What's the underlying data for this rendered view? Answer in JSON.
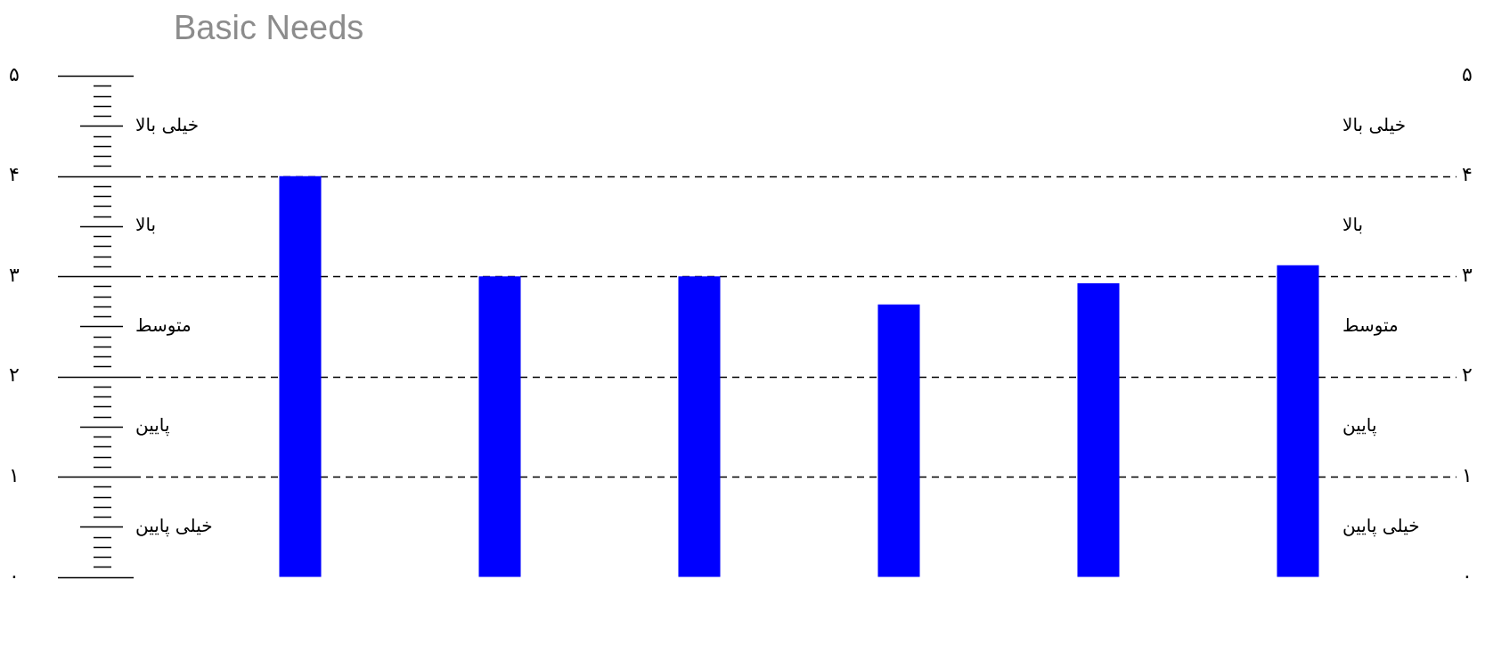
{
  "chart_data": {
    "type": "bar",
    "title": "Basic Needs",
    "categories": [
      null,
      null,
      null,
      null,
      null,
      null
    ],
    "values": [
      4,
      3,
      3,
      2.72,
      2.93,
      3.11
    ],
    "color": "#0000ff",
    "ylim": [
      0,
      5
    ],
    "yticks": [
      {
        "value": 0,
        "label": "۰"
      },
      {
        "value": 1,
        "label": "۱"
      },
      {
        "value": 2,
        "label": "۲"
      },
      {
        "value": 3,
        "label": "۳"
      },
      {
        "value": 4,
        "label": "۴"
      },
      {
        "value": 5,
        "label": "۵"
      }
    ],
    "y2lim": [
      0,
      5
    ],
    "y2ticks": [
      {
        "value": 0,
        "label": "۰"
      },
      {
        "value": 1,
        "label": "۱"
      },
      {
        "value": 2,
        "label": "۲"
      },
      {
        "value": 3,
        "label": "۳"
      },
      {
        "value": 4,
        "label": "۴"
      },
      {
        "value": 5,
        "label": "۵"
      }
    ],
    "grid": "y",
    "annotations": [
      "خیلی بالا",
      "بالا",
      "متوسط",
      "پایین",
      "خیلی پایین"
    ]
  }
}
